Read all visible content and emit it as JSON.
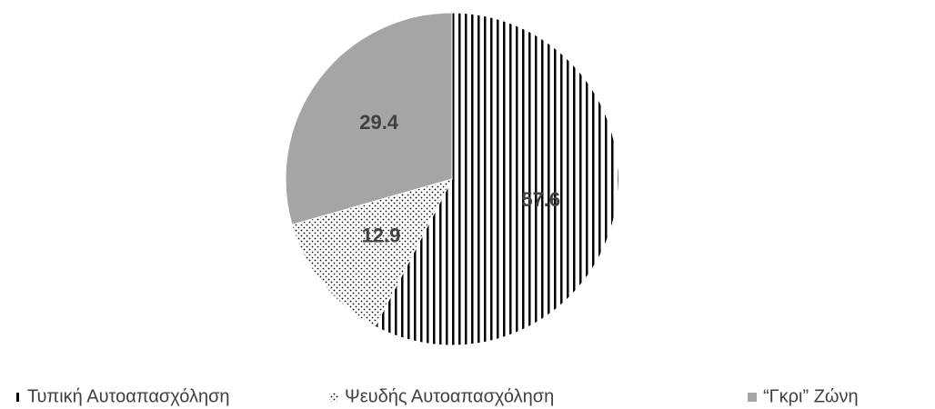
{
  "chart_data": {
    "type": "pie",
    "categories": [
      "Τυπική Αυτοαπασχόληση",
      "Ψευδής Αυτοαπασχόληση",
      "“Γκρι” Ζώνη"
    ],
    "values": [
      57.6,
      12.9,
      29.4
    ],
    "colors": [
      "#000000",
      "#000000",
      "#a5a5a5"
    ],
    "patterns": [
      "vertical-stripes",
      "dots",
      "solid"
    ],
    "legend": "bottom"
  }
}
